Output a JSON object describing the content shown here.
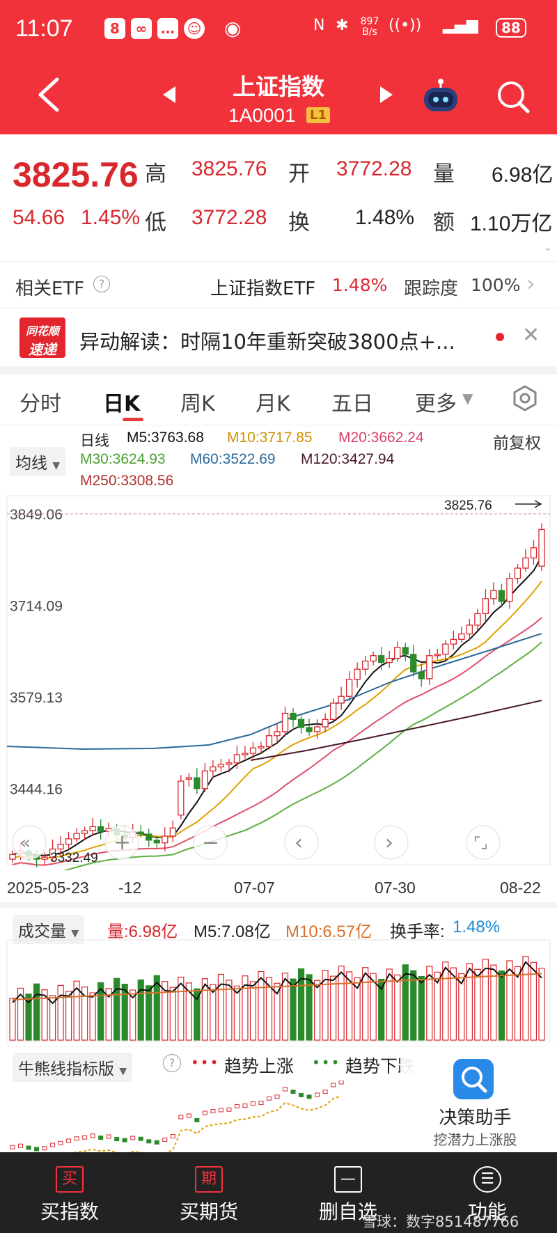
{
  "status_bar": {
    "time": "11:07",
    "speed": "897 B/s",
    "battery": "88"
  },
  "header": {
    "title": "上证指数",
    "code": "1A0001",
    "level_badge": "L1"
  },
  "quote": {
    "price": "3825.76",
    "change": "54.66",
    "change_pct": "1.45%",
    "high_label": "高",
    "high": "3825.76",
    "open_label": "开",
    "open": "3772.28",
    "volume_label": "量",
    "volume": "6.98亿",
    "low_label": "低",
    "low": "3772.28",
    "turnover_label": "换",
    "turnover": "1.48%",
    "amount_label": "额",
    "amount": "1.10万亿"
  },
  "etf": {
    "label": "相关ETF",
    "name": "上证指数ETF",
    "pct": "1.48%",
    "track_label": "跟踪度",
    "track": "100%"
  },
  "news": {
    "badge_top": "同花顺",
    "badge_bottom": "速递",
    "text": "异动解读：时隔10年重新突破3800点+..."
  },
  "tabs": [
    "分时",
    "日K",
    "周K",
    "月K",
    "五日",
    "更多"
  ],
  "ma": {
    "selector": "均线",
    "type": "日线",
    "adj": "前复权",
    "m5": "M5:3763.68",
    "m10": "M10:3717.85",
    "m20": "M20:3662.24",
    "m30": "M30:3624.93",
    "m60": "M60:3522.69",
    "m120": "M120:3427.94",
    "m250": "M250:3308.56"
  },
  "colors": {
    "m5": "#111111",
    "m10": "#e0a000",
    "m20": "#e0506a",
    "m30": "#5cb040",
    "m60": "#2a6a9a",
    "m120": "#4a1a2a",
    "up": "#d9272e",
    "down": "#2b8a2b"
  },
  "chart_data": {
    "type": "candlestick",
    "y_ticks": [
      "3849.06",
      "3714.09",
      "3579.13",
      "3444.16"
    ],
    "ylim": [
      3310,
      3860
    ],
    "x_ticks": [
      "2025-05-23",
      "-12",
      "07-07",
      "07-30",
      "08-22"
    ],
    "last_label": "3825.76",
    "low_label": "3332.49",
    "closes": [
      3347,
      3352,
      3345,
      3340,
      3343,
      3355,
      3362,
      3370,
      3378,
      3382,
      3388,
      3381,
      3385,
      3376,
      3372,
      3380,
      3377,
      3368,
      3364,
      3374,
      3386,
      3455,
      3460,
      3444,
      3470,
      3476,
      3480,
      3482,
      3494,
      3496,
      3504,
      3506,
      3522,
      3528,
      3555,
      3546,
      3534,
      3528,
      3535,
      3546,
      3570,
      3580,
      3605,
      3620,
      3632,
      3640,
      3630,
      3636,
      3652,
      3642,
      3616,
      3606,
      3640,
      3642,
      3657,
      3664,
      3672,
      3685,
      3702,
      3724,
      3736,
      3720,
      3754,
      3769,
      3784,
      3799,
      3826
    ],
    "opens": [
      3340,
      3349,
      3352,
      3345,
      3340,
      3343,
      3355,
      3362,
      3370,
      3378,
      3382,
      3388,
      3381,
      3385,
      3376,
      3372,
      3380,
      3377,
      3368,
      3364,
      3374,
      3405,
      3458,
      3460,
      3444,
      3470,
      3476,
      3480,
      3482,
      3494,
      3496,
      3504,
      3506,
      3522,
      3528,
      3555,
      3546,
      3534,
      3528,
      3535,
      3546,
      3570,
      3580,
      3605,
      3620,
      3632,
      3640,
      3630,
      3636,
      3652,
      3642,
      3616,
      3606,
      3640,
      3642,
      3657,
      3664,
      3672,
      3685,
      3702,
      3724,
      3736,
      3720,
      3754,
      3769,
      3784,
      3772
    ]
  },
  "volume_panel": {
    "selector": "成交量",
    "vol": "量:6.98亿",
    "m5": "M5:7.08亿",
    "m10": "M10:6.57亿",
    "turnover_label": "换手率:",
    "turnover": "1.48%"
  },
  "bull_panel": {
    "selector": "牛熊线指标版",
    "up_label": "趋势上涨",
    "down_label": "趋势下跌"
  },
  "assistant": {
    "title": "决策助手",
    "sub": "挖潜力上涨股"
  },
  "bottom_nav": [
    {
      "icon": "买",
      "label": "买指数"
    },
    {
      "icon": "期",
      "label": "买期货"
    },
    {
      "icon": "—",
      "label": "删自选"
    },
    {
      "icon": "☰",
      "label": "功能"
    }
  ],
  "watermark": "雪球：数字851487766"
}
